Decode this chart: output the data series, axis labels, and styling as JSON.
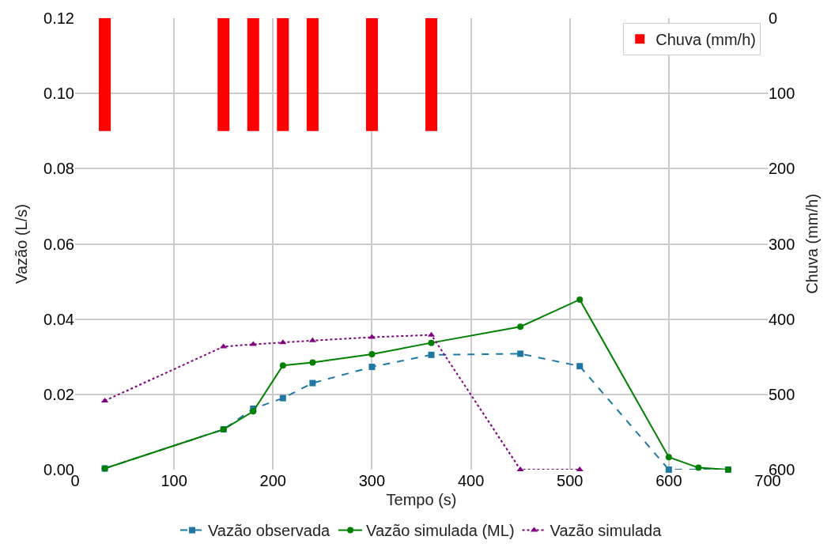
{
  "chart_data": {
    "type": "line",
    "xlabel": "Tempo (s)",
    "ylabel": "Vazão (L/s)",
    "y2label": "Chuva (mm/h)",
    "xlim": [
      0,
      700
    ],
    "xticks": [
      0,
      100,
      200,
      300,
      400,
      500,
      600,
      700
    ],
    "ylim": [
      0,
      0.12
    ],
    "yticks": [
      {
        "value": 0,
        "label": "0.00"
      },
      {
        "value": 0.02,
        "label": "0.02"
      },
      {
        "value": 0.04,
        "label": "0.04"
      },
      {
        "value": 0.06,
        "label": "0.06"
      },
      {
        "value": 0.08,
        "label": "0.08"
      },
      {
        "value": 0.1,
        "label": "0.10"
      },
      {
        "value": 0.12,
        "label": "0.12"
      }
    ],
    "y2lim": [
      600,
      0
    ],
    "y2ticks": [
      0,
      100,
      200,
      300,
      400,
      500,
      600
    ],
    "grid": true,
    "legend": "bottom",
    "series": [
      {
        "name": "Chuva (mm/h)",
        "type": "bar",
        "axis": "y2",
        "color": "#ff0000",
        "x": [
          30,
          150,
          180,
          210,
          240,
          300,
          360
        ],
        "values": [
          150,
          150,
          150,
          150,
          150,
          150,
          150
        ]
      },
      {
        "name": "Vazão observada",
        "color": "#1f77a4",
        "marker": "square",
        "line_style": "dashed",
        "x": [
          30,
          150,
          180,
          210,
          240,
          300,
          360,
          450,
          510,
          600,
          660
        ],
        "values": [
          0.0003,
          0.0107,
          0.0162,
          0.019,
          0.023,
          0.0273,
          0.0305,
          0.0308,
          0.0275,
          0.0,
          0.0
        ]
      },
      {
        "name": "Vazão simulada (ML)",
        "color": "#008000",
        "marker": "circle",
        "line_style": "solid",
        "x": [
          30,
          150,
          180,
          210,
          240,
          300,
          360,
          450,
          510,
          600,
          630,
          660
        ],
        "values": [
          0.0003,
          0.0107,
          0.0155,
          0.0277,
          0.0285,
          0.0307,
          0.0337,
          0.038,
          0.0452,
          0.0033,
          0.0005,
          0.0
        ]
      },
      {
        "name": "Vazão simulada",
        "color": "#800080",
        "marker": "triangle",
        "line_style": "dotted",
        "x": [
          30,
          150,
          180,
          210,
          240,
          300,
          360,
          450,
          510
        ],
        "values": [
          0.0183,
          0.0327,
          0.0333,
          0.0338,
          0.0343,
          0.0352,
          0.0358,
          0.0,
          0.0
        ]
      }
    ]
  }
}
